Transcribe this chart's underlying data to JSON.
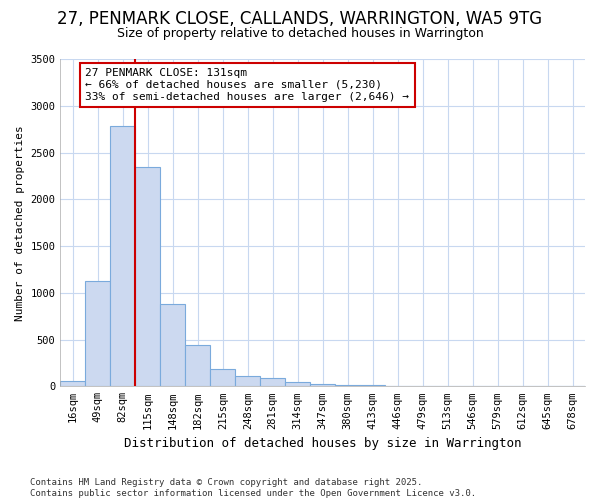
{
  "title": "27, PENMARK CLOSE, CALLANDS, WARRINGTON, WA5 9TG",
  "subtitle": "Size of property relative to detached houses in Warrington",
  "xlabel": "Distribution of detached houses by size in Warrington",
  "ylabel": "Number of detached properties",
  "bin_labels": [
    "16sqm",
    "49sqm",
    "82sqm",
    "115sqm",
    "148sqm",
    "182sqm",
    "215sqm",
    "248sqm",
    "281sqm",
    "314sqm",
    "347sqm",
    "380sqm",
    "413sqm",
    "446sqm",
    "479sqm",
    "513sqm",
    "546sqm",
    "579sqm",
    "612sqm",
    "645sqm",
    "678sqm"
  ],
  "bar_values": [
    55,
    1130,
    2780,
    2350,
    880,
    440,
    185,
    110,
    85,
    50,
    30,
    18,
    12,
    0,
    0,
    0,
    0,
    0,
    0,
    0,
    0
  ],
  "bar_color": "#ccd9f0",
  "bar_edge_color": "#7aaadc",
  "vline_color": "#cc0000",
  "vline_index": 3,
  "annotation_text": "27 PENMARK CLOSE: 131sqm\n← 66% of detached houses are smaller (5,230)\n33% of semi-detached houses are larger (2,646) →",
  "annotation_box_edgecolor": "#cc0000",
  "background_color": "#ffffff",
  "grid_color": "#c8d8f0",
  "footer_text": "Contains HM Land Registry data © Crown copyright and database right 2025.\nContains public sector information licensed under the Open Government Licence v3.0.",
  "title_fontsize": 12,
  "subtitle_fontsize": 9,
  "ylabel_fontsize": 8,
  "xlabel_fontsize": 9,
  "tick_fontsize": 7.5,
  "annotation_fontsize": 8,
  "footer_fontsize": 6.5,
  "ylim": [
    0,
    3500
  ],
  "yticks": [
    0,
    500,
    1000,
    1500,
    2000,
    2500,
    3000,
    3500
  ]
}
